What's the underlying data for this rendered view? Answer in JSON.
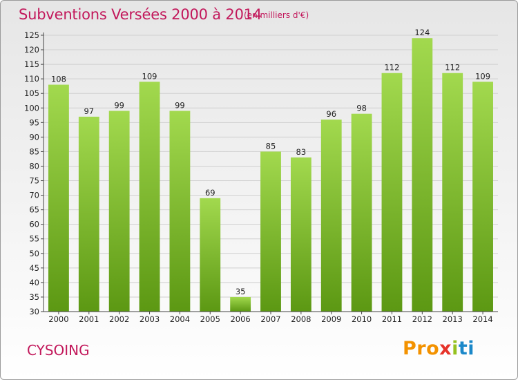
{
  "page": {
    "title": "Subventions Versées 2000 à 2014",
    "subtitle": "(en milliers d'€)",
    "commune": "CYSOING",
    "logo": [
      "Pro",
      "x",
      "i",
      "ti"
    ]
  },
  "colors": {
    "title": "#c2185b",
    "bar_light": "#9ed64a",
    "bar_dark": "#5e9a14",
    "grid": "#cfcfcf"
  },
  "chart_data": {
    "type": "bar",
    "title": "Subventions Versées 2000 à 2014",
    "subtitle": "(en milliers d'€)",
    "categories": [
      "2000",
      "2001",
      "2002",
      "2003",
      "2004",
      "2005",
      "2006",
      "2007",
      "2008",
      "2009",
      "2010",
      "2011",
      "2012",
      "2013",
      "2014"
    ],
    "values": [
      108,
      97,
      99,
      109,
      99,
      69,
      35,
      85,
      83,
      96,
      98,
      112,
      124,
      112,
      109
    ],
    "ylim": [
      30,
      125
    ],
    "yticks": [
      30,
      35,
      40,
      45,
      50,
      55,
      60,
      65,
      70,
      75,
      80,
      85,
      90,
      95,
      100,
      105,
      110,
      115,
      120,
      125
    ],
    "grid": true,
    "legend": "none"
  }
}
